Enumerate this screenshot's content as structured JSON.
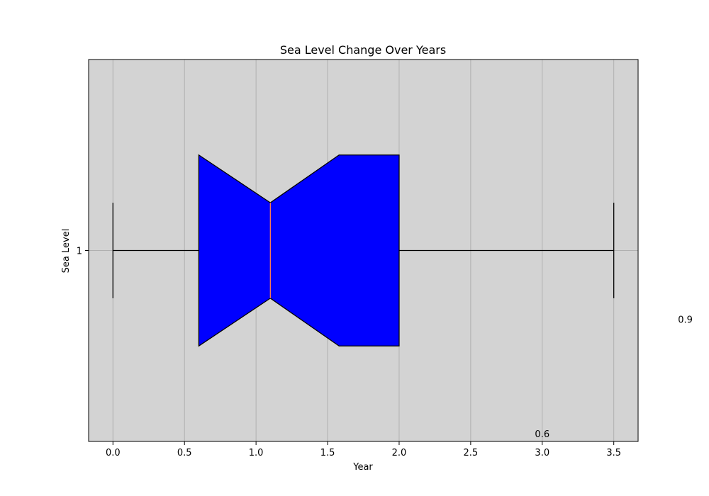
{
  "chart_data": {
    "type": "boxplot",
    "orientation": "horizontal",
    "title": "Sea Level Change Over Years",
    "xlabel": "Year",
    "ylabel": "Sea Level",
    "xlim": [
      -0.17,
      3.67
    ],
    "xticks": [
      "0.0",
      "0.5",
      "1.0",
      "1.5",
      "2.0",
      "2.5",
      "3.0",
      "3.5"
    ],
    "xtick_values": [
      0.0,
      0.5,
      1.0,
      1.5,
      2.0,
      2.5,
      3.0,
      3.5
    ],
    "yticks": [
      "1"
    ],
    "grid": true,
    "background_color": "#d3d3d3",
    "box_color": "#0000ff",
    "median_color": "#ff7f50",
    "notched": true,
    "box": {
      "position": 1,
      "whisker_low": 0.0,
      "q1": 0.6,
      "median": 1.1,
      "q3": 2.0,
      "whisker_high": 3.5,
      "notch_low": 0.6,
      "notch_high": 1.58
    },
    "annotations": [
      {
        "text": "0.9",
        "x": 4.0,
        "y": 0.82
      },
      {
        "text": "0.6",
        "x": 3.0,
        "y": 0.52
      }
    ]
  }
}
